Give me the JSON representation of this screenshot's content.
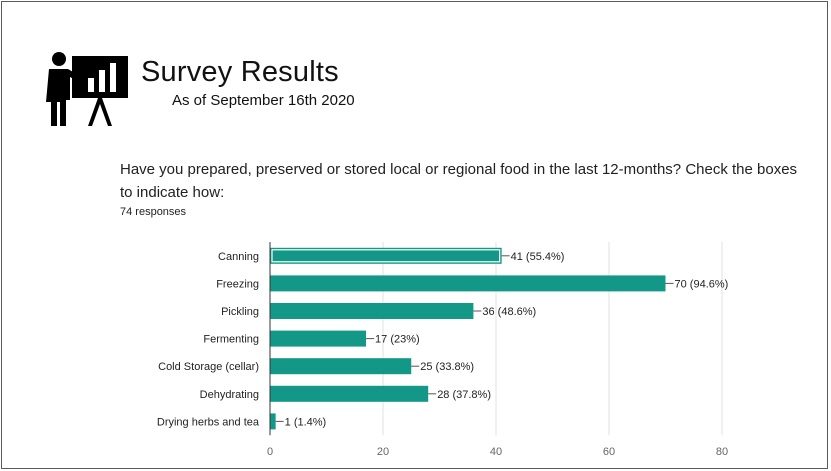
{
  "header": {
    "title": "Survey Results",
    "subtitle": "As of September 16th 2020"
  },
  "question": {
    "text": "Have you prepared, preserved or stored local or regional food in the last 12-months? Check the boxes to indicate how:",
    "responses": "74 responses"
  },
  "colors": {
    "bar": "#139887",
    "axis": "#333333",
    "grid": "#e0e0e0",
    "label": "#222222"
  },
  "chart_data": {
    "type": "bar",
    "orientation": "horizontal",
    "categories": [
      "Canning",
      "Freezing",
      "Pickling",
      "Fermenting",
      "Cold Storage (cellar)",
      "Dehydrating",
      "Drying herbs and tea"
    ],
    "values": [
      41,
      70,
      36,
      17,
      25,
      28,
      1
    ],
    "data_labels": [
      "41 (55.4%)",
      "70 (94.6%)",
      "36 (48.6%)",
      "17 (23%)",
      "25 (33.8%)",
      "28 (37.8%)",
      "1 (1.4%)"
    ],
    "xlim": [
      0,
      80
    ],
    "xticks": [
      0,
      20,
      40,
      60,
      80
    ],
    "grid": true,
    "highlighted_category": "Canning"
  }
}
